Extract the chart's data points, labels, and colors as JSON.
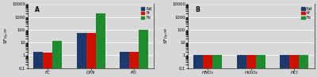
{
  "panel_A": {
    "label": "A",
    "categories": [
      "FC",
      "CPN",
      "PO"
    ],
    "Nd": [
      1.8,
      55,
      1.8
    ],
    "Pr": [
      1.7,
      55,
      1.8
    ],
    "Fe": [
      14,
      2000,
      100
    ]
  },
  "panel_B": {
    "label": "B",
    "categories": [
      "HNO₃",
      "H₂SO₄",
      "HCl"
    ],
    "Nd": [
      1.0,
      1.0,
      1.0
    ],
    "Pr": [
      1.0,
      1.0,
      1.0
    ],
    "Fe": [
      1.0,
      1.0,
      1.0
    ]
  },
  "colors": {
    "Nd": "#1b3a6b",
    "Pr": "#cc1100",
    "Fe": "#1e8c2e"
  },
  "legend_labels": [
    "Nd",
    "Pr",
    "Fe"
  ],
  "ylabel": "SF$_{Dy/M}$",
  "ylim": [
    0.1,
    10000
  ],
  "yticks": [
    0.1,
    1,
    10,
    100,
    1000,
    10000
  ],
  "ytick_labels": [
    "0,1",
    "1",
    "10",
    "100",
    "1000",
    "10000"
  ],
  "bar_width": 0.22,
  "fig_facecolor": "#d8d8d8",
  "ax_facecolor": "#d8d8d8"
}
